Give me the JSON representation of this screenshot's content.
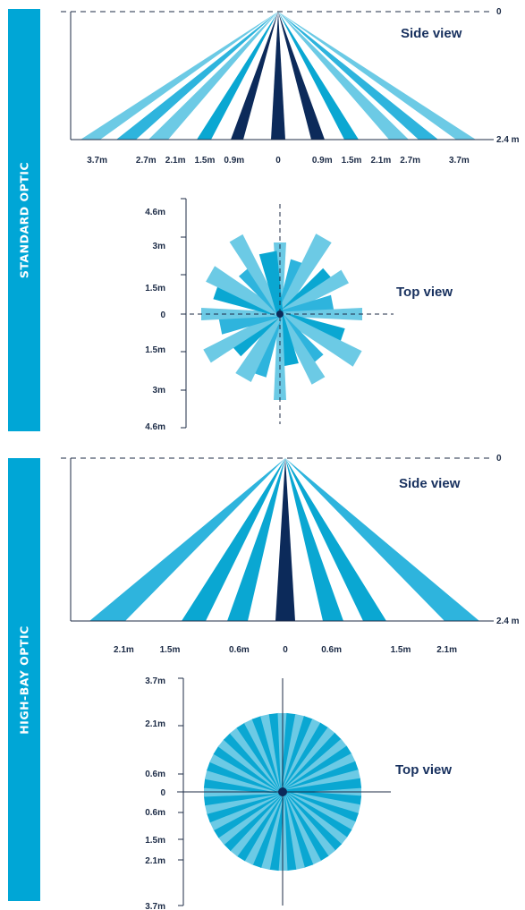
{
  "colors": {
    "band": "#00a6d6",
    "light": "#6ccae5",
    "medium": "#2eb4dd",
    "dark": "#0aa7d2",
    "navy": "#0c2a5a",
    "axis": "#1c2b46"
  },
  "panels": [
    {
      "band_label": "STANDARD OPTIC",
      "side_view": {
        "title": "Side view",
        "height_top_label": "0",
        "height_bottom_label": "2.4 m",
        "x_ticks": [
          {
            "value": -3.7,
            "label": "3.7m"
          },
          {
            "value": -2.7,
            "label": "2.7m"
          },
          {
            "value": -2.1,
            "label": "2.1m"
          },
          {
            "value": -1.5,
            "label": "1.5m"
          },
          {
            "value": -0.9,
            "label": "0.9m"
          },
          {
            "value": 0,
            "label": "0"
          },
          {
            "value": 0.9,
            "label": "0.9m"
          },
          {
            "value": 1.5,
            "label": "1.5m"
          },
          {
            "value": 2.1,
            "label": "2.1m"
          },
          {
            "value": 2.7,
            "label": "2.7m"
          },
          {
            "value": 3.7,
            "label": "3.7m"
          }
        ]
      },
      "top_view": {
        "title": "Top view",
        "y_ticks": [
          {
            "value": -4.6,
            "label": "4.6m"
          },
          {
            "value": -3,
            "label": "3m"
          },
          {
            "value": -1.5,
            "label": "1.5m"
          },
          {
            "value": 0,
            "label": "0"
          },
          {
            "value": 1.5,
            "label": "1.5m"
          },
          {
            "value": 3,
            "label": "3m"
          },
          {
            "value": 4.6,
            "label": "4.6m"
          }
        ]
      }
    },
    {
      "band_label": "HIGH-BAY OPTIC",
      "side_view": {
        "title": "Side view",
        "height_top_label": "0",
        "height_bottom_label": "2.4 m",
        "x_ticks": [
          {
            "value": -2.1,
            "label": "2.1m"
          },
          {
            "value": -1.5,
            "label": "1.5m"
          },
          {
            "value": -0.6,
            "label": "0.6m"
          },
          {
            "value": 0,
            "label": "0"
          },
          {
            "value": 0.6,
            "label": "0.6m"
          },
          {
            "value": 1.5,
            "label": "1.5m"
          },
          {
            "value": 2.1,
            "label": "2.1m"
          }
        ]
      },
      "top_view": {
        "title": "Top view",
        "y_ticks": [
          {
            "value": -3.7,
            "label": "3.7m"
          },
          {
            "value": -2.1,
            "label": "2.1m"
          },
          {
            "value": -0.6,
            "label": "0.6m"
          },
          {
            "value": 0,
            "label": "0"
          },
          {
            "value": 0.6,
            "label": "0.6m"
          },
          {
            "value": 1.5,
            "label": "1.5m"
          },
          {
            "value": 2.1,
            "label": "2.1m"
          },
          {
            "value": 3.7,
            "label": "3.7m"
          }
        ]
      }
    }
  ]
}
